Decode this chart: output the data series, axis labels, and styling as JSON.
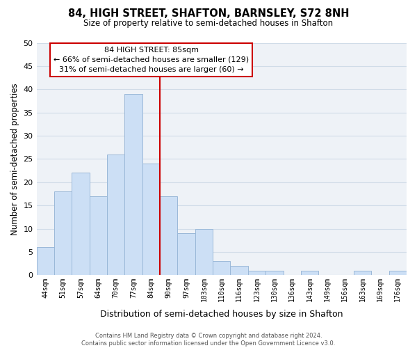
{
  "title": "84, HIGH STREET, SHAFTON, BARNSLEY, S72 8NH",
  "subtitle": "Size of property relative to semi-detached houses in Shafton",
  "xlabel": "Distribution of semi-detached houses by size in Shafton",
  "ylabel": "Number of semi-detached properties",
  "bar_labels": [
    "44sqm",
    "51sqm",
    "57sqm",
    "64sqm",
    "70sqm",
    "77sqm",
    "84sqm",
    "90sqm",
    "97sqm",
    "103sqm",
    "110sqm",
    "116sqm",
    "123sqm",
    "130sqm",
    "136sqm",
    "143sqm",
    "149sqm",
    "156sqm",
    "163sqm",
    "169sqm",
    "176sqm"
  ],
  "bar_values": [
    6,
    18,
    22,
    17,
    26,
    39,
    24,
    17,
    9,
    10,
    3,
    2,
    1,
    1,
    0,
    1,
    0,
    0,
    1,
    0,
    1
  ],
  "bar_color": "#ccdff5",
  "bar_edge_color": "#9ab8d8",
  "highlight_bar_index": 6,
  "highlight_line_color": "#cc0000",
  "ylim": [
    0,
    50
  ],
  "yticks": [
    0,
    5,
    10,
    15,
    20,
    25,
    30,
    35,
    40,
    45,
    50
  ],
  "annotation_title": "84 HIGH STREET: 85sqm",
  "annotation_line1": "← 66% of semi-detached houses are smaller (129)",
  "annotation_line2": "31% of semi-detached houses are larger (60) →",
  "annotation_box_color": "#ffffff",
  "annotation_box_edge": "#cc0000",
  "footer_line1": "Contains HM Land Registry data © Crown copyright and database right 2024.",
  "footer_line2": "Contains public sector information licensed under the Open Government Licence v3.0.",
  "grid_color": "#d0dce8",
  "background_color": "#eef2f7"
}
